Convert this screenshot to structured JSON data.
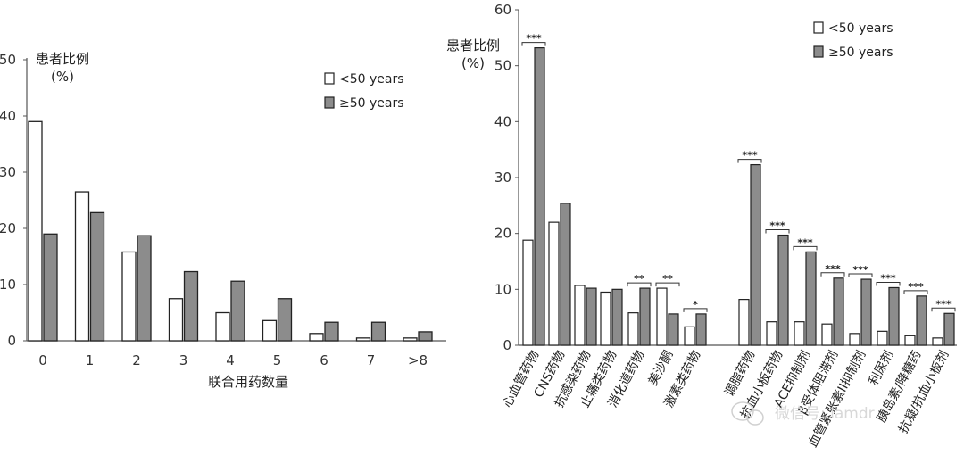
{
  "colors": {
    "lt50": "#ffffff",
    "ge50": "#8c8c8c",
    "axis": "#555555"
  },
  "watermark": {
    "icon": "wechat-icon",
    "text": "微信号: lamdr"
  },
  "chart_data": [
    {
      "type": "bar",
      "title": "",
      "ylabel_line1": "患者比例",
      "ylabel_line2": "(%)",
      "xlabel": "联合用药数量",
      "ylim": [
        0,
        50
      ],
      "yticks": [
        0,
        10,
        20,
        30,
        40,
        50
      ],
      "grid": false,
      "legend": {
        "placement": "top-right",
        "entries": [
          "<50 years",
          "≥50 years"
        ]
      },
      "categories": [
        "0",
        "1",
        "2",
        "3",
        "4",
        "5",
        "6",
        "7",
        ">8"
      ],
      "series": [
        {
          "name": "<50 years",
          "values": [
            39,
            26.5,
            15.8,
            7.5,
            5,
            3.6,
            1.3,
            0.5,
            0.5
          ]
        },
        {
          "name": "≥50 years",
          "values": [
            19,
            22.8,
            18.7,
            12.3,
            10.6,
            7.5,
            3.3,
            3.3,
            1.6
          ]
        }
      ]
    },
    {
      "type": "bar",
      "title": "",
      "ylabel_line1": "患者比例",
      "ylabel_line2": "(%)",
      "xlabel": "",
      "ylim": [
        0,
        60
      ],
      "yticks": [
        0,
        10,
        20,
        30,
        40,
        50,
        60
      ],
      "grid": false,
      "legend": {
        "placement": "top-right",
        "entries": [
          "<50 years",
          "≥50 years"
        ]
      },
      "groups": [
        {
          "categories": [
            "心血管药物",
            "CNS药物",
            "抗感染药物",
            "止痛类药物",
            "消化道药物",
            "美沙酮",
            "激素类药物"
          ]
        },
        {
          "categories": [
            "调脂药物",
            "抗血小板药物",
            "ACE抑制剂",
            "β受体阻滞剂",
            "血管紧张素II抑制剂",
            "利尿剂",
            "胰岛素/降糖药",
            "抗凝/抗血小板剂"
          ]
        }
      ],
      "categories": [
        "心血管药物",
        "CNS药物",
        "抗感染药物",
        "止痛类药物",
        "消化道药物",
        "美沙酮",
        "激素类药物",
        "调脂药物",
        "抗血小板药物",
        "ACE抑制剂",
        "β受体阻滞剂",
        "血管紧张素II抑制剂",
        "利尿剂",
        "胰岛素/降糖药",
        "抗凝/抗血小板剂"
      ],
      "series": [
        {
          "name": "<50 years",
          "values": [
            18.8,
            22,
            10.7,
            9.5,
            5.8,
            10.2,
            3.3,
            8.2,
            4.2,
            4.2,
            3.8,
            2.1,
            2.5,
            1.7,
            1.3
          ]
        },
        {
          "name": "≥50 years",
          "values": [
            53.2,
            25.4,
            10.2,
            10,
            10.2,
            5.6,
            5.6,
            32.3,
            19.7,
            16.7,
            12,
            11.8,
            10.3,
            8.8,
            5.7
          ]
        }
      ],
      "significance": [
        "***",
        "",
        "",
        "",
        "**",
        "**",
        "*",
        "***",
        "***",
        "***",
        "***",
        "***",
        "***",
        "***",
        "***"
      ]
    }
  ]
}
